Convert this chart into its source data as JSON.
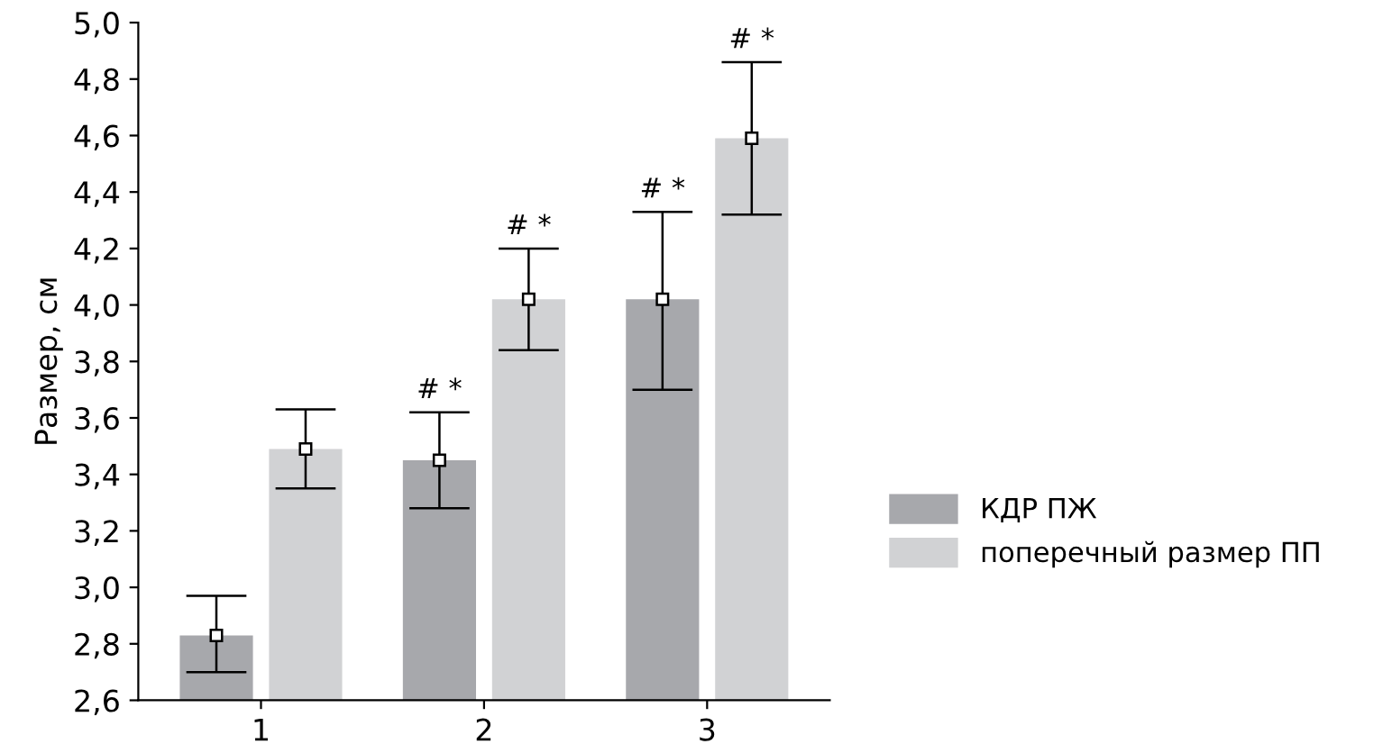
{
  "chart_data": {
    "type": "bar",
    "ylabel": "Размер, см",
    "categories": [
      "1",
      "2",
      "3"
    ],
    "series": [
      {
        "name": "КДР ПЖ",
        "color": "#a7a8ac",
        "values": [
          2.83,
          3.45,
          4.02
        ],
        "errors": [
          [
            2.7,
            2.97
          ],
          [
            3.28,
            3.62
          ],
          [
            3.7,
            4.33
          ]
        ]
      },
      {
        "name": "поперечный размер ПП",
        "color": "#d1d2d4",
        "values": [
          3.49,
          4.02,
          4.59
        ],
        "errors": [
          [
            3.35,
            3.63
          ],
          [
            3.84,
            4.2
          ],
          [
            4.32,
            4.86
          ]
        ]
      },
      {
        "type": "scatter",
        "x": [
          "1",
          "2",
          "3"
        ],
        "color": "#ffffff",
        "values": [
          2.83,
          3.45,
          4.02
        ]
      },
      {
        "type": "scatter",
        "x": [
          "1",
          "2",
          "3"
        ],
        "color": "#ffffff",
        "values": [
          3.49,
          4.02,
          4.59
        ]
      }
    ],
    "ylim": [
      2.6,
      5.0
    ],
    "yticks": [
      {
        "value": 2.6,
        "label": "2,6"
      },
      {
        "value": 2.8,
        "label": "2,8"
      },
      {
        "value": 3.0,
        "label": "3,0"
      },
      {
        "value": 3.2,
        "label": "3,2"
      },
      {
        "value": 3.4,
        "label": "3,4"
      },
      {
        "value": 3.6,
        "label": "3,6"
      },
      {
        "value": 3.8,
        "label": "3,8"
      },
      {
        "value": 4.0,
        "label": "4,0"
      },
      {
        "value": 4.2,
        "label": "4,2"
      },
      {
        "value": 4.4,
        "label": "4,4"
      },
      {
        "value": 4.6,
        "label": "4,6"
      },
      {
        "value": 4.8,
        "label": "4,8"
      },
      {
        "value": 5.0,
        "label": "5,0"
      }
    ],
    "marker": "square",
    "grid": false,
    "legend": "right",
    "annotations": [
      "# *",
      "# *",
      "# *",
      "# *"
    ]
  }
}
